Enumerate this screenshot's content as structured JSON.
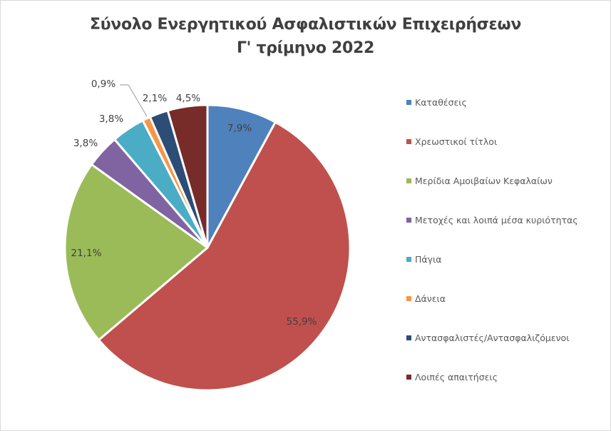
{
  "chart_data": {
    "type": "pie",
    "title": "Σύνολο Ενεργητικού Ασφαλιστικών Επιχειρήσεων",
    "subtitle": "Γ' τρίμηνο 2022",
    "categories": [
      "Καταθέσεις",
      "Χρεωστικοί τίτλοι",
      "Μερίδια  Αμοιβαίων Κεφαλαίων",
      "Μετοχές και λοιπά μέσα κυριότητας",
      "Πάγια",
      "Δάνεια",
      "Αντασφαλιστές/Αντασφαλιζόμενοι",
      "Λοιπές απαιτήσεις"
    ],
    "values": [
      7.9,
      55.9,
      21.1,
      3.8,
      3.8,
      0.9,
      2.1,
      4.5
    ],
    "labels": [
      "7,9%",
      "55,9%",
      "21,1%",
      "3,8%",
      "3,8%",
      "0,9%",
      "2,1%",
      "4,5%"
    ],
    "colors": [
      "#4f81bd",
      "#c0504d",
      "#9bbb59",
      "#8064a2",
      "#4bacc6",
      "#f79646",
      "#2c4d75",
      "#772c2a"
    ],
    "legend_position": "right",
    "start_angle_deg": 0,
    "direction": "clockwise"
  },
  "title": {
    "line1": "Σύνολο Ενεργητικού Ασφαλιστικών Επιχειρήσεων",
    "line2": "Γ' τρίμηνο 2022"
  },
  "legend": {
    "items": [
      {
        "label": "Καταθέσεις",
        "color": "#4f81bd"
      },
      {
        "label": "Χρεωστικοί τίτλοι",
        "color": "#c0504d"
      },
      {
        "label": "Μερίδια  Αμοιβαίων Κεφαλαίων",
        "color": "#9bbb59"
      },
      {
        "label": "Μετοχές και λοιπά μέσα κυριότητας",
        "color": "#8064a2"
      },
      {
        "label": "Πάγια",
        "color": "#4bacc6"
      },
      {
        "label": "Δάνεια",
        "color": "#f79646"
      },
      {
        "label": "Αντασφαλιστές/Αντασφαλιζόμενοι",
        "color": "#2c4d75"
      },
      {
        "label": "Λοιπές απαιτήσεις",
        "color": "#772c2a"
      }
    ]
  }
}
